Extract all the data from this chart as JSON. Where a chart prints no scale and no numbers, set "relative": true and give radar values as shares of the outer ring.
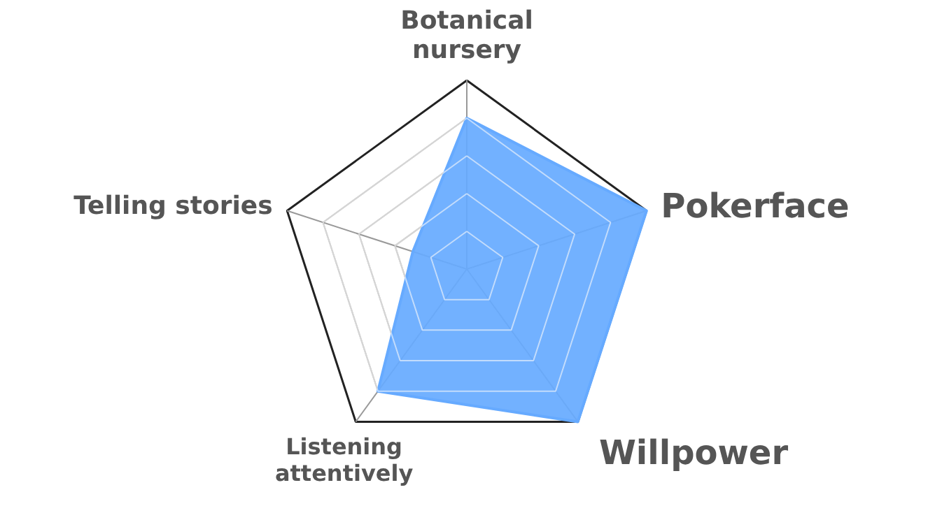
{
  "chart_data": {
    "type": "radar",
    "relative": true,
    "categories": [
      "Botanical\nnursery",
      "Pokerface",
      "Willpower",
      "Listening\nattentively",
      "Telling stories"
    ],
    "series": [
      {
        "color": "#66aaff",
        "values": [
          0.8,
          1.0,
          1.0,
          0.8,
          0.3
        ]
      }
    ]
  }
}
